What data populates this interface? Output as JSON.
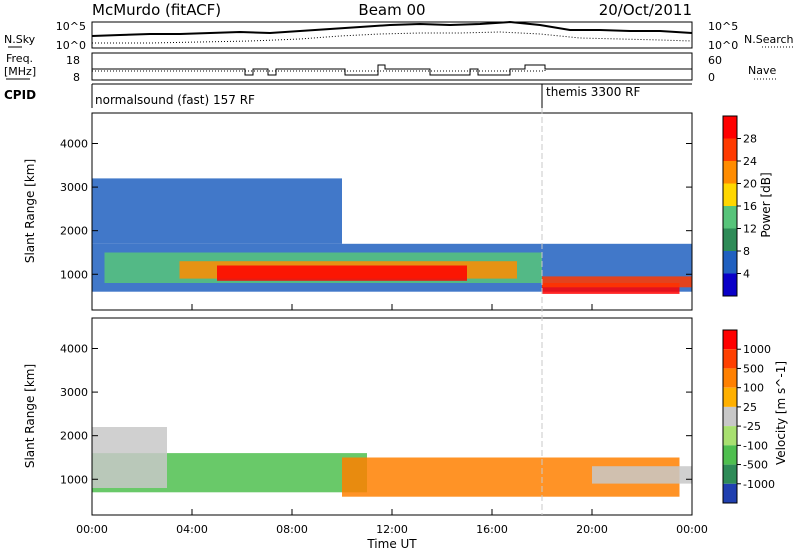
{
  "header": {
    "station": "McMurdo (fitACF)",
    "beam": "Beam 00",
    "date": "20/Oct/2011"
  },
  "noise_panel": {
    "left_label": "N.Sky",
    "right_label": "N.Search",
    "left_ticks": [
      "10^5",
      "10^0"
    ],
    "right_ticks": [
      "10^5",
      "10^0"
    ]
  },
  "freq_panel": {
    "left_label_1": "Freq.",
    "left_label_2": "[MHz]",
    "right_label": "Nave",
    "left_ticks": [
      "18",
      "8"
    ],
    "right_ticks": [
      "60",
      "0"
    ]
  },
  "cpid": {
    "label": "CPID",
    "segments": [
      {
        "name": "normalsound (fast) 157 RF",
        "start_hour": 0,
        "end_hour": 18
      },
      {
        "name": "themis 3300 RF",
        "start_hour": 18,
        "end_hour": 24
      }
    ]
  },
  "chart_data": [
    {
      "type": "heatmap",
      "title": "",
      "xlabel": "",
      "ylabel": "Slant Range [km]",
      "xlim": [
        0,
        24
      ],
      "ylim": [
        180,
        4700
      ],
      "yticks": [
        "1000",
        "2000",
        "3000",
        "4000"
      ],
      "colorbar": {
        "label": "Power [dB]",
        "ticks": [
          "28",
          "24",
          "20",
          "16",
          "12",
          "8",
          "4"
        ],
        "levels": [
          "#0a00c8",
          "#2060c0",
          "#2e8b57",
          "#57c47a",
          "#ffd700",
          "#ff8c00",
          "#ff3a00",
          "#ff0000"
        ]
      },
      "bands": [
        {
          "level": 1,
          "hours": [
            0,
            24
          ],
          "range_km": [
            600,
            1700
          ]
        },
        {
          "level": 1,
          "hours": [
            0,
            10
          ],
          "range_km": [
            1700,
            3200
          ]
        },
        {
          "level": 3,
          "hours": [
            0.5,
            18
          ],
          "range_km": [
            800,
            1500
          ]
        },
        {
          "level": 5,
          "hours": [
            3.5,
            17
          ],
          "range_km": [
            900,
            1300
          ]
        },
        {
          "level": 7,
          "hours": [
            5,
            15
          ],
          "range_km": [
            850,
            1200
          ]
        },
        {
          "level": 7,
          "hours": [
            18,
            23.5
          ],
          "range_km": [
            550,
            800
          ]
        },
        {
          "level": 6,
          "hours": [
            18,
            24
          ],
          "range_km": [
            700,
            950
          ]
        }
      ]
    },
    {
      "type": "heatmap",
      "title": "",
      "xlabel": "Time UT",
      "ylabel": "Slant Range [km]",
      "xlim": [
        0,
        24
      ],
      "ylim": [
        180,
        4700
      ],
      "x_tick_labels": [
        "00:00",
        "04:00",
        "08:00",
        "12:00",
        "16:00",
        "20:00",
        "00:00"
      ],
      "yticks": [
        "1000",
        "2000",
        "3000",
        "4000"
      ],
      "colorbar": {
        "label": "Velocity [m s^-1]",
        "ticks": [
          "1000",
          "500",
          "100",
          "25",
          "-25",
          "-100",
          "-500",
          "-1000"
        ],
        "levels": [
          "#2040b0",
          "#2e8b57",
          "#4fbf4f",
          "#a8e070",
          "#c8c8c8",
          "#ffb000",
          "#ff8000",
          "#ff4000",
          "#ff0000"
        ]
      },
      "bands": [
        {
          "level": 2,
          "hours": [
            0,
            11
          ],
          "range_km": [
            700,
            1600
          ]
        },
        {
          "level": 4,
          "hours": [
            0,
            3
          ],
          "range_km": [
            800,
            2200
          ]
        },
        {
          "level": 6,
          "hours": [
            10,
            23.5
          ],
          "range_km": [
            600,
            1500
          ]
        },
        {
          "level": 4,
          "hours": [
            20,
            24
          ],
          "range_km": [
            900,
            1300
          ]
        }
      ]
    }
  ],
  "colors": {
    "axis": "#000000",
    "cpid_switch": "#c8c8c8"
  }
}
